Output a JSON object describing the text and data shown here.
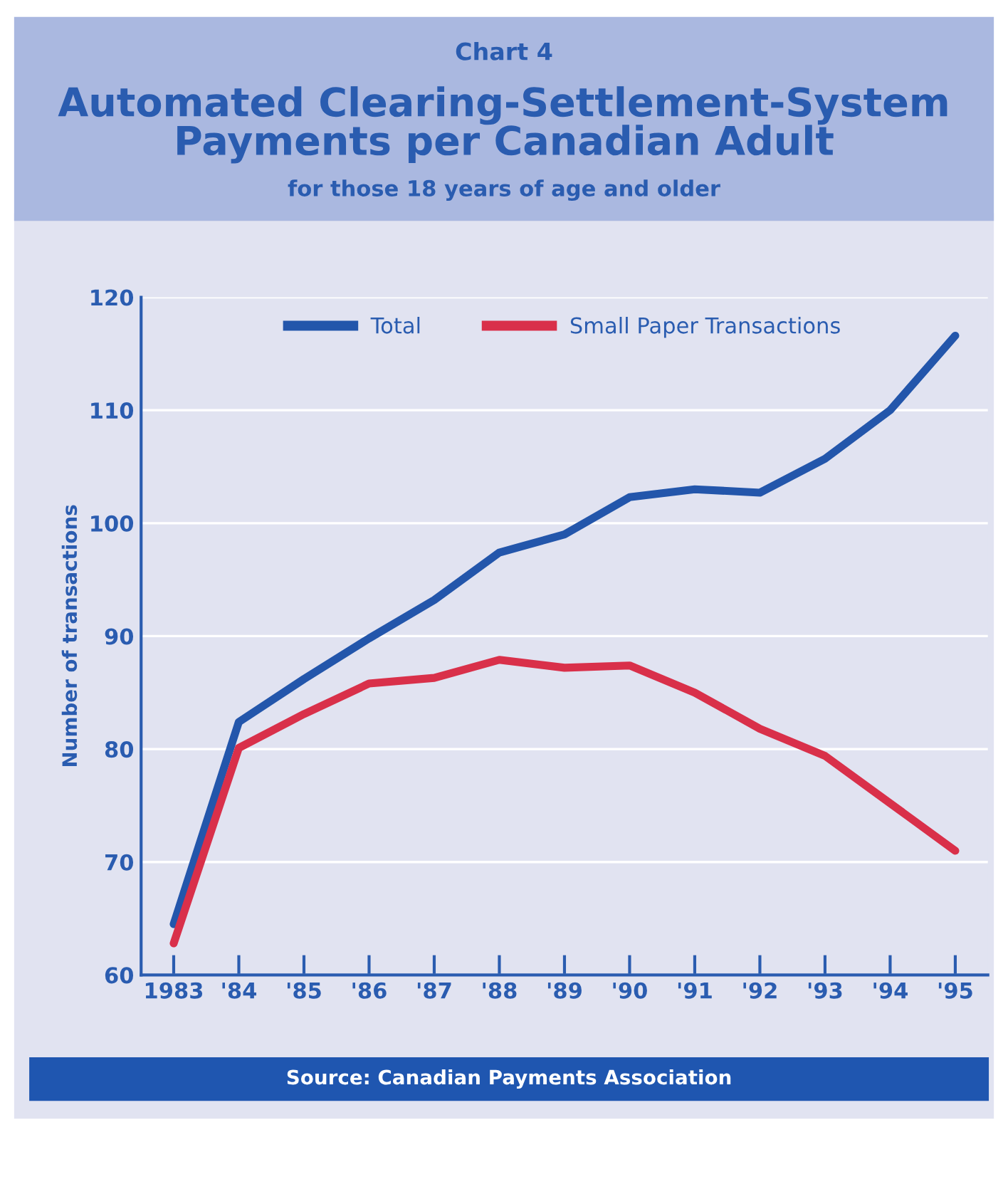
{
  "chart_data": {
    "type": "line",
    "title": "Automated Clearing-Settlement-System\nPayments per Canadian Adult",
    "subtitle": "for those 18 years of age and older",
    "ylabel": "Number of transactions",
    "categories": [
      "1983",
      "'84",
      "'85",
      "'86",
      "'87",
      "'88",
      "'89",
      "'90",
      "'91",
      "'92",
      "'93",
      "'94",
      "'95"
    ],
    "series": [
      {
        "name": "Total",
        "color": "#2356ab",
        "values": [
          64.5,
          82.4,
          86.2,
          89.8,
          93.2,
          97.4,
          99,
          102.3,
          103,
          102.7,
          105.7,
          110,
          116.6
        ]
      },
      {
        "name": "Small Paper Transactions",
        "color": "#d9304a",
        "values": [
          62.8,
          80.1,
          83.1,
          85.8,
          86.3,
          87.9,
          87.2,
          87.4,
          85,
          81.8,
          79.4,
          75.2,
          71
        ]
      }
    ],
    "ylim": [
      60,
      120
    ],
    "yticks": [
      60,
      70,
      80,
      90,
      100,
      110,
      120
    ],
    "grid": "y",
    "legend": "top",
    "marker": "none",
    "line_style": "solid",
    "annotations": [
      "Chart 4",
      "Source: Canadian Payments Association"
    ]
  }
}
